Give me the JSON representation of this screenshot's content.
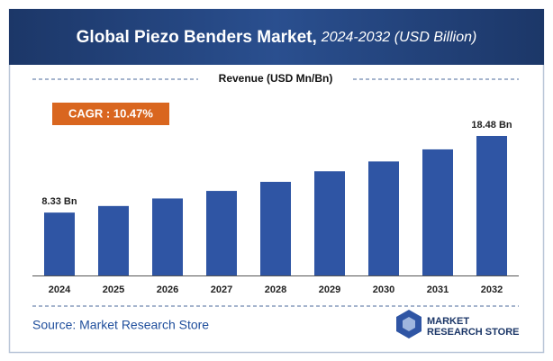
{
  "chart_data": {
    "type": "bar",
    "title": "Global Piezo Benders Market,",
    "subtitle": "2024-2032 (USD Billion)",
    "caption": "Revenue (USD Mn/Bn)",
    "annotation": "CAGR : 10.47%",
    "source": "Source: Market Research Store",
    "categories": [
      "2024",
      "2025",
      "2026",
      "2027",
      "2028",
      "2029",
      "2030",
      "2031",
      "2032"
    ],
    "values": [
      8.33,
      9.2,
      10.2,
      11.2,
      12.4,
      13.8,
      15.1,
      16.7,
      18.48
    ],
    "value_labels": [
      "8.33 Bn",
      null,
      null,
      null,
      null,
      null,
      null,
      null,
      "18.48 Bn"
    ],
    "color": "#2f55a4"
  },
  "logo": {
    "line1": "MARKET",
    "line2": "RESEARCH STORE"
  }
}
